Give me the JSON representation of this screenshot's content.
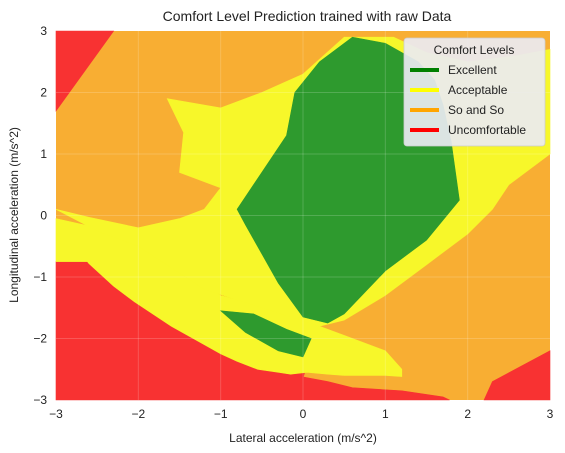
{
  "chart_data": {
    "type": "contourf",
    "title": "Comfort Level Prediction trained with raw Data",
    "xlabel": "Lateral acceleration (m/s^2)",
    "ylabel": "Longitudinal acceleration (m/s^2)",
    "xlim": [
      -3,
      3
    ],
    "ylim": [
      -3,
      3
    ],
    "xticks": [
      -3,
      -2,
      -1,
      0,
      1,
      2,
      3
    ],
    "yticks": [
      -3,
      -2,
      -1,
      0,
      1,
      2,
      3
    ],
    "xtick_labels": [
      "−3",
      "−2",
      "−1",
      "0",
      "1",
      "2",
      "3"
    ],
    "ytick_labels": [
      "−3",
      "−2",
      "−1",
      "0",
      "1",
      "2",
      "3"
    ],
    "grid": true,
    "legend": {
      "title": "Comfort Levels",
      "placement": "top-right",
      "entries": [
        {
          "label": "Excellent",
          "color": "#008000"
        },
        {
          "label": "Acceptable",
          "color": "#ffff00"
        },
        {
          "label": "So and So",
          "color": "#ffa500"
        },
        {
          "label": "Uncomfortable",
          "color": "#ff0000"
        }
      ]
    },
    "region_colors": {
      "Excellent": "#2e9a2e",
      "Acceptable": "#f7f72a",
      "So and So": "#f8ae33",
      "Uncomfortable": "#f83232"
    },
    "regions": [
      {
        "class": "Uncomfortable",
        "points": [
          [
            -3,
            3
          ],
          [
            -2.3,
            3
          ],
          [
            -3,
            1.7
          ]
        ]
      },
      {
        "class": "Uncomfortable",
        "points": [
          [
            -3,
            -0.75
          ],
          [
            -2.62,
            -0.75
          ],
          [
            -2.6,
            -0.78
          ],
          [
            -2.3,
            -1.15
          ],
          [
            -2.05,
            -1.4
          ],
          [
            -1.6,
            -1.8
          ],
          [
            -1.2,
            -2.1
          ],
          [
            -1.0,
            -2.25
          ],
          [
            -0.8,
            -2.37
          ],
          [
            -0.55,
            -2.5
          ],
          [
            -0.3,
            -2.55
          ],
          [
            -0.15,
            -2.58
          ],
          [
            -0.1,
            -2.6
          ],
          [
            0.3,
            -2.7
          ],
          [
            0.6,
            -2.8
          ],
          [
            1.2,
            -2.85
          ],
          [
            1.7,
            -2.95
          ],
          [
            1.78,
            -3.0
          ],
          [
            -3,
            -3
          ]
        ]
      },
      {
        "class": "Uncomfortable",
        "points": [
          [
            3,
            -2.2
          ],
          [
            2.3,
            -2.7
          ],
          [
            2.2,
            -3
          ],
          [
            3,
            -3
          ]
        ]
      },
      {
        "class": "Uncomfortable",
        "points": [
          [
            -1.8,
            -0.82
          ],
          [
            -1.3,
            -1.05
          ],
          [
            -0.8,
            -1.4
          ],
          [
            -0.3,
            -1.65
          ],
          [
            -0.15,
            -1.75
          ],
          [
            0.15,
            -1.95
          ],
          [
            0.1,
            -2.2
          ],
          [
            0.05,
            -2.4
          ],
          [
            0.0,
            -2.65
          ],
          [
            -0.3,
            -2.5
          ],
          [
            -0.7,
            -2.1
          ],
          [
            -1.0,
            -1.85
          ],
          [
            -1.3,
            -1.55
          ],
          [
            -1.6,
            -1.15
          ]
        ]
      },
      {
        "class": "Acceptable",
        "points": [
          [
            -3,
            -0.75
          ],
          [
            -2.62,
            -0.75
          ],
          [
            -2.6,
            -0.78
          ],
          [
            -2.3,
            -1.15
          ],
          [
            -2.05,
            -1.4
          ],
          [
            -1.6,
            -1.8
          ],
          [
            -1.2,
            -2.1
          ],
          [
            -1.0,
            -2.25
          ],
          [
            -0.8,
            -2.37
          ],
          [
            -0.55,
            -2.5
          ],
          [
            -0.3,
            -2.55
          ],
          [
            -0.15,
            -2.58
          ],
          [
            0.05,
            -2.55
          ],
          [
            0.3,
            -2.58
          ],
          [
            0.5,
            -2.6
          ],
          [
            1.0,
            -2.6
          ],
          [
            1.2,
            -2.62
          ],
          [
            1.2,
            -2.5
          ],
          [
            1.0,
            -2.2
          ],
          [
            0.5,
            -1.95
          ],
          [
            0.0,
            -1.7
          ],
          [
            -0.3,
            -1.55
          ],
          [
            -1.0,
            -1.3
          ],
          [
            -2.0,
            -0.5
          ],
          [
            -2.5,
            -0.2
          ],
          [
            -3,
            -0.05
          ]
        ]
      },
      {
        "class": "Acceptable",
        "points": [
          [
            -3,
            0.1
          ],
          [
            -2.6,
            -0.03
          ],
          [
            -2.0,
            -0.2
          ],
          [
            -1.5,
            -0.05
          ],
          [
            -1.2,
            0.1
          ],
          [
            -1.0,
            0.45
          ],
          [
            -1.5,
            0.7
          ],
          [
            -1.45,
            1.35
          ],
          [
            -1.65,
            1.9
          ],
          [
            -1.0,
            1.75
          ],
          [
            -0.5,
            2.0
          ],
          [
            0.0,
            2.3
          ],
          [
            0.5,
            2.9
          ],
          [
            1.1,
            2.9
          ],
          [
            1.5,
            2.65
          ],
          [
            2.0,
            2.5
          ],
          [
            2.6,
            2.6
          ],
          [
            3,
            2.7
          ],
          [
            3,
            1.0
          ],
          [
            2.5,
            0.5
          ],
          [
            2.3,
            0.1
          ],
          [
            2.0,
            -0.3
          ],
          [
            1.5,
            -0.8
          ],
          [
            1.0,
            -1.3
          ],
          [
            0.5,
            -1.7
          ],
          [
            0.2,
            -1.8
          ],
          [
            -0.5,
            -1.5
          ],
          [
            -1.2,
            -1.2
          ],
          [
            -2.0,
            -0.5
          ],
          [
            -2.5,
            -0.25
          ]
        ]
      },
      {
        "class": "Excellent",
        "points": [
          [
            -0.8,
            0.1
          ],
          [
            -0.5,
            0.7
          ],
          [
            -0.2,
            1.3
          ],
          [
            -0.1,
            2.0
          ],
          [
            0.2,
            2.5
          ],
          [
            0.6,
            2.9
          ],
          [
            1.0,
            2.8
          ],
          [
            1.4,
            2.5
          ],
          [
            1.6,
            2.2
          ],
          [
            1.7,
            1.8
          ],
          [
            1.8,
            1.2
          ],
          [
            1.9,
            0.25
          ],
          [
            1.5,
            -0.4
          ],
          [
            1.0,
            -0.9
          ],
          [
            0.5,
            -1.6
          ],
          [
            0.3,
            -1.75
          ],
          [
            0.0,
            -1.65
          ],
          [
            -0.3,
            -1.1
          ],
          [
            -0.7,
            -0.15
          ]
        ]
      },
      {
        "class": "Excellent",
        "points": [
          [
            -1.0,
            -1.55
          ],
          [
            -0.6,
            -1.6
          ],
          [
            -0.2,
            -1.85
          ],
          [
            0.1,
            -2.0
          ],
          [
            0.0,
            -2.3
          ],
          [
            -0.3,
            -2.2
          ],
          [
            -0.7,
            -1.9
          ]
        ]
      }
    ]
  }
}
